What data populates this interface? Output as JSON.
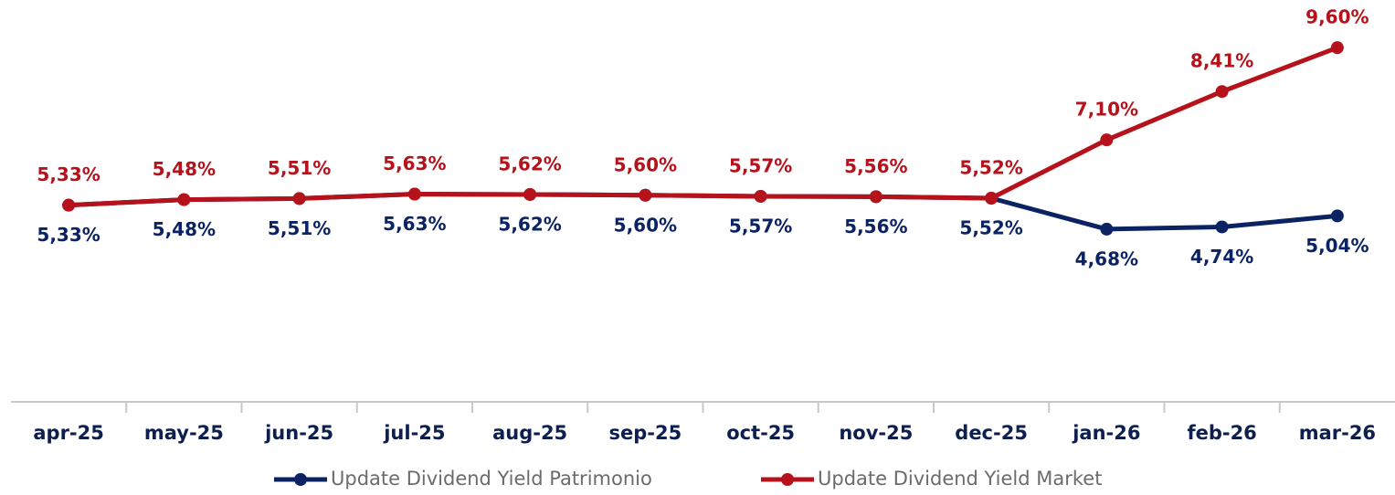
{
  "chart_data": {
    "type": "line",
    "categories": [
      "apr-25",
      "may-25",
      "jun-25",
      "jul-25",
      "aug-25",
      "sep-25",
      "oct-25",
      "nov-25",
      "dec-25",
      "jan-26",
      "feb-26",
      "mar-26"
    ],
    "ylim": [
      0,
      10
    ],
    "series": [
      {
        "name": "Update Dividend Yield Patrimonio",
        "color": "#0b2363",
        "values": [
          5.33,
          5.48,
          5.51,
          5.63,
          5.62,
          5.6,
          5.57,
          5.56,
          5.52,
          4.68,
          4.74,
          5.04
        ],
        "value_labels": [
          "5,33%",
          "5,48%",
          "5,51%",
          "5,63%",
          "5,62%",
          "5,60%",
          "5,57%",
          "5,56%",
          "5,52%",
          "4,68%",
          "4,74%",
          "5,04%"
        ]
      },
      {
        "name": "Update Dividend Yield Market",
        "color": "#b5121b",
        "values": [
          5.33,
          5.48,
          5.51,
          5.63,
          5.62,
          5.6,
          5.57,
          5.56,
          5.52,
          7.1,
          8.41,
          9.6
        ],
        "value_labels": [
          "5,33%",
          "5,48%",
          "5,51%",
          "5,63%",
          "5,62%",
          "5,60%",
          "5,57%",
          "5,56%",
          "5,52%",
          "7,10%",
          "8,41%",
          "9,60%"
        ]
      }
    ]
  }
}
